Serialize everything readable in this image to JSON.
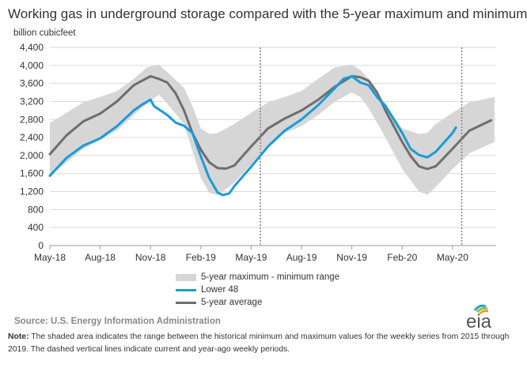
{
  "title": "Working gas in underground  storage compared with the 5-year maximum  and minimum",
  "unit_label": "billion cubicfeet",
  "legend": {
    "range": "5-year maximum - minimum range",
    "lower48": "Lower 48",
    "average": "5-year average"
  },
  "source": "Source:  U.S. Energy Information Administration",
  "note_label": "Note:",
  "note_text": " The shaded area indicates the range between the historical minimum and maximum values for the weekly series from 2015 through 2019. The dashed vertical lines indicate current and year-ago weekly periods.",
  "logo_text": "eia",
  "colors": {
    "range": "#d6d6d6",
    "lower48": "#1a9bd7",
    "average": "#6e6e6e",
    "grid": "#d9d9d9"
  },
  "chart_data": {
    "type": "line",
    "title": "Working gas in underground  storage compared with the 5-year maximum  and minimum",
    "ylabel": "billion cubicfeet",
    "ylim": [
      0,
      4400
    ],
    "y_ticks": [
      0,
      400,
      800,
      1200,
      1600,
      2000,
      2400,
      2800,
      3200,
      3600,
      4000,
      4400
    ],
    "x_tick_labels": [
      "May-18",
      "Aug-18",
      "Nov-18",
      "Feb-19",
      "May-19",
      "Aug-19",
      "Nov-19",
      "Feb-20",
      "May-20"
    ],
    "x_tick_months": [
      0,
      3,
      6,
      9,
      12,
      15,
      18,
      21,
      24
    ],
    "xlim_months": [
      0,
      26.6
    ],
    "dashed_vertical_lines_months": [
      12.55,
      24.55
    ],
    "grid": true,
    "legend_position": "bottom",
    "series": [
      {
        "name": "5-year maximum - minimum range",
        "kind": "band",
        "x_months": [
          0,
          1,
          2,
          3,
          4,
          5,
          5.8,
          6.5,
          7,
          8,
          8.5,
          9,
          9.5,
          10,
          11,
          12,
          13,
          14,
          15,
          16,
          17,
          18,
          18.5,
          19,
          20,
          21,
          22,
          22.5,
          23,
          24,
          25,
          26.5
        ],
        "upper": [
          2720,
          2950,
          3180,
          3300,
          3430,
          3700,
          3960,
          4020,
          3850,
          3500,
          3100,
          2600,
          2480,
          2500,
          2700,
          2950,
          3180,
          3300,
          3430,
          3700,
          3960,
          4020,
          3900,
          3700,
          3150,
          2600,
          2480,
          2500,
          2700,
          2950,
          3180,
          3300
        ],
        "lower": [
          1550,
          1850,
          2150,
          2350,
          2550,
          2900,
          3150,
          3350,
          3150,
          2700,
          2100,
          1500,
          1180,
          1120,
          1400,
          1800,
          2250,
          2500,
          2650,
          2900,
          3200,
          3400,
          3300,
          3050,
          2400,
          1700,
          1200,
          1130,
          1300,
          1700,
          2050,
          2300
        ]
      },
      {
        "name": "Lower 48",
        "x_months": [
          0,
          1,
          2,
          3,
          4,
          5,
          5.5,
          6,
          6.2,
          7,
          7.5,
          8,
          8.5,
          9,
          9.5,
          10,
          10.3,
          10.7,
          11,
          12,
          13,
          14,
          15,
          16,
          17,
          17.5,
          18,
          18.5,
          19,
          19.5,
          20,
          21,
          21.5,
          22,
          22.5,
          23,
          24,
          24.2
        ],
        "values": [
          1550,
          1950,
          2220,
          2380,
          2650,
          3000,
          3130,
          3240,
          3100,
          2900,
          2730,
          2660,
          2500,
          1980,
          1500,
          1180,
          1120,
          1160,
          1320,
          1750,
          2200,
          2550,
          2800,
          3120,
          3500,
          3700,
          3760,
          3620,
          3560,
          3300,
          3100,
          2500,
          2150,
          2010,
          1960,
          2080,
          2500,
          2620
        ]
      },
      {
        "name": "5-year average",
        "x_months": [
          0,
          1,
          2,
          3,
          4,
          5,
          6,
          6.5,
          7,
          7.5,
          8,
          8.5,
          9,
          9.5,
          10,
          10.5,
          11,
          12,
          13,
          14,
          15,
          16,
          17,
          18,
          18.5,
          19,
          19.5,
          20,
          21,
          21.5,
          22,
          22.5,
          23,
          24,
          25,
          26.3
        ],
        "values": [
          2030,
          2450,
          2760,
          2930,
          3200,
          3560,
          3760,
          3700,
          3620,
          3380,
          3000,
          2500,
          2130,
          1850,
          1720,
          1710,
          1780,
          2200,
          2600,
          2820,
          3000,
          3240,
          3530,
          3760,
          3740,
          3660,
          3400,
          3000,
          2300,
          1990,
          1760,
          1700,
          1760,
          2150,
          2550,
          2780
        ]
      }
    ]
  }
}
